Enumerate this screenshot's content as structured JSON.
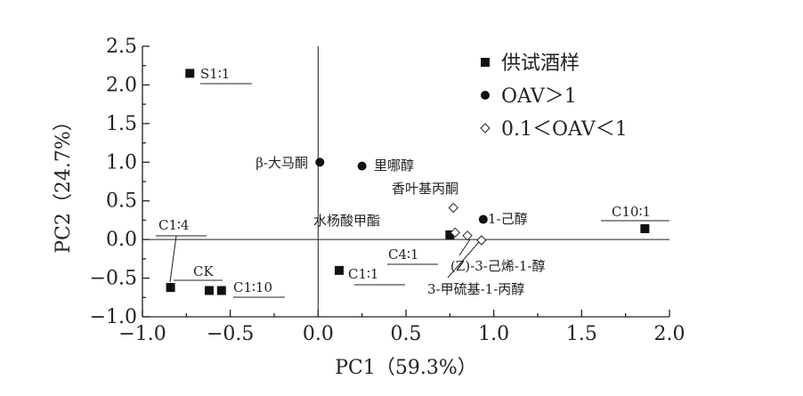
{
  "chart_data": {
    "type": "scatter",
    "title": "",
    "xlabel": "PC1（59.3%）",
    "ylabel": "PC2（24.7%）",
    "xlim": [
      -1.0,
      2.0
    ],
    "ylim": [
      -1.0,
      2.5
    ],
    "xticks": [
      -1.0,
      -0.5,
      0.0,
      0.5,
      1.0,
      1.5,
      2.0
    ],
    "xtick_labels": [
      "−1.0",
      "−0.5",
      "0.0",
      "0.5",
      "1.0",
      "1.5",
      "2.0"
    ],
    "yticks": [
      -1.0,
      -0.5,
      0.0,
      0.5,
      1.0,
      1.5,
      2.0,
      2.5
    ],
    "ytick_labels": [
      "−1.0",
      "−0.5",
      "0.0",
      "0.5",
      "1.0",
      "1.5",
      "2.0",
      "2.5"
    ],
    "legend_position": "top-right",
    "series": [
      {
        "name": "供试酒样",
        "marker": "square",
        "points": [
          {
            "label": "S1∶1",
            "x": -0.73,
            "y": 2.15
          },
          {
            "label": "C1∶4",
            "x": -0.84,
            "y": -0.62
          },
          {
            "label": "CK",
            "x": -0.62,
            "y": -0.66
          },
          {
            "label": "C1∶10",
            "x": -0.55,
            "y": -0.66
          },
          {
            "label": "C1∶1",
            "x": 0.12,
            "y": -0.4
          },
          {
            "label": "C4∶1",
            "x": 0.75,
            "y": 0.06
          },
          {
            "label": "C10∶1",
            "x": 1.86,
            "y": 0.14
          }
        ]
      },
      {
        "name": "OAV＞1",
        "marker": "circle",
        "points": [
          {
            "label": "β-大马酮",
            "x": 0.01,
            "y": 1.0
          },
          {
            "label": "里哪醇",
            "x": 0.25,
            "y": 0.95
          },
          {
            "label": "1-己醇",
            "x": 0.94,
            "y": 0.26
          }
        ]
      },
      {
        "name": "0.1＜OAV＜1",
        "marker": "diamond",
        "points": [
          {
            "label": "香叶基丙酮",
            "x": 0.77,
            "y": 0.41
          },
          {
            "label": "水杨酸甲酯",
            "x": 0.78,
            "y": 0.09
          },
          {
            "label": "3-甲硫基-1-丙醇",
            "x": 0.85,
            "y": 0.05
          },
          {
            "label": "(Z)-3-己烯-1-醇",
            "x": 0.93,
            "y": -0.01
          }
        ]
      }
    ]
  }
}
